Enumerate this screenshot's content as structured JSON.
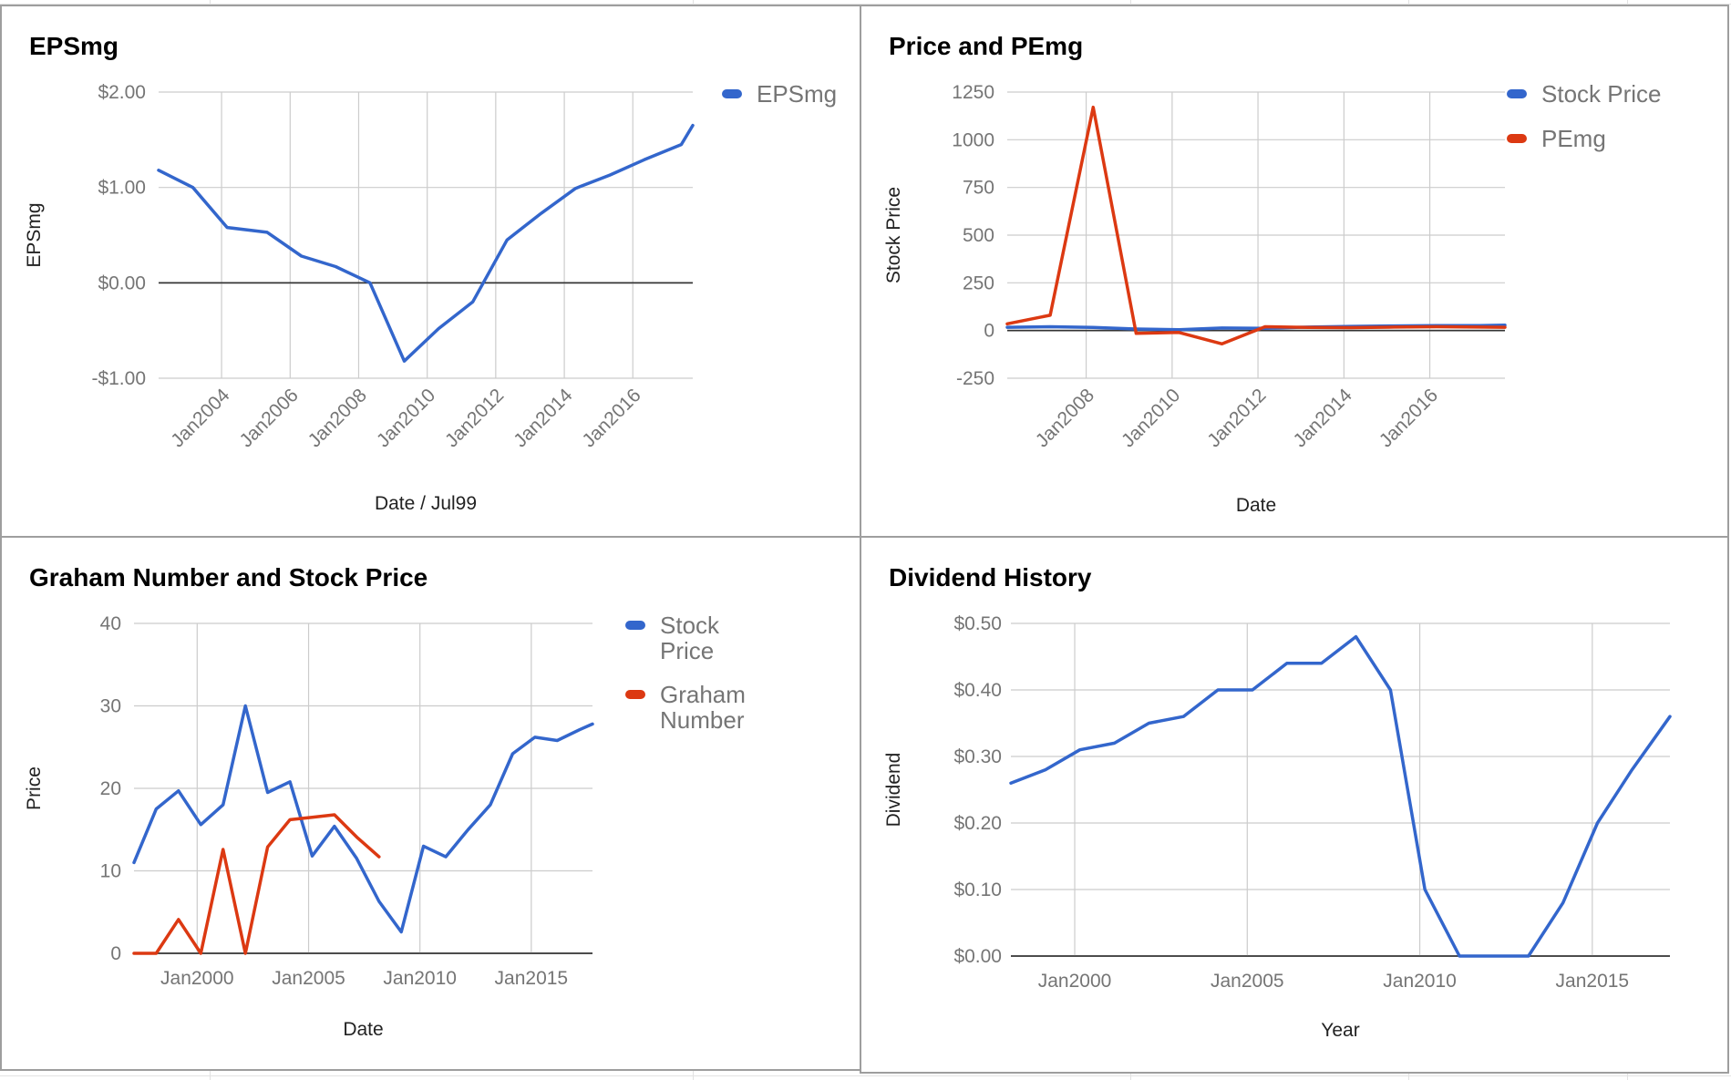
{
  "colors": {
    "blue": "#3366cc",
    "red": "#dc3912",
    "grid": "#cccccc",
    "zero_line": "#333333",
    "tick_text": "#757575",
    "title": "#000000"
  },
  "panels": {
    "epsmg": {
      "title": "EPSmg"
    },
    "price_pe": {
      "title": "Price and PEmg"
    },
    "graham": {
      "title": "Graham Number and Stock Price"
    },
    "dividend": {
      "title": "Dividend History"
    }
  },
  "chart_data": [
    {
      "id": "epsmg",
      "type": "line",
      "title": "EPSmg",
      "xlabel": "Date / Jul99",
      "ylabel": "EPSmg",
      "x_type": "date",
      "xlim": [
        "2002-03-01",
        "2017-10-01"
      ],
      "ylim": [
        -1,
        2
      ],
      "yticks": [
        2,
        1,
        0,
        -1
      ],
      "ytick_labels": [
        "$2.00",
        "$1.00",
        "$0.00",
        "-$1.00"
      ],
      "xticks": [
        "2004-01-01",
        "2006-01-01",
        "2008-01-01",
        "2010-01-01",
        "2012-01-01",
        "2014-01-01",
        "2016-01-01"
      ],
      "xtick_labels": [
        "Jan2004",
        "Jan2006",
        "Jan2008",
        "Jan2010",
        "Jan2012",
        "Jan2014",
        "Jan2016"
      ],
      "grid": true,
      "legend_position": "right",
      "series": [
        {
          "name": "EPSmg",
          "color": "#3366cc",
          "x": [
            "2002-03-01",
            "2003-03-01",
            "2004-03-01",
            "2005-05-01",
            "2006-05-01",
            "2007-05-01",
            "2008-05-01",
            "2009-05-01",
            "2010-05-01",
            "2011-05-01",
            "2012-05-01",
            "2013-05-01",
            "2014-05-01",
            "2015-05-01",
            "2016-05-01",
            "2017-06-01",
            "2017-10-01"
          ],
          "y": [
            1.18,
            1.0,
            0.58,
            0.53,
            0.28,
            0.17,
            0.0,
            -0.82,
            -0.48,
            -0.2,
            0.45,
            0.73,
            0.99,
            1.13,
            1.29,
            1.45,
            1.65
          ]
        }
      ]
    },
    {
      "id": "price_pe",
      "type": "line",
      "title": "Price and PEmg",
      "xlabel": "Date",
      "ylabel": "Stock Price",
      "x_type": "date",
      "xlim": [
        "2006-03-01",
        "2017-10-01"
      ],
      "ylim": [
        -250,
        1250
      ],
      "yticks": [
        1250,
        1000,
        750,
        500,
        250,
        0,
        -250
      ],
      "ytick_labels": [
        "1250",
        "1000",
        "750",
        "500",
        "250",
        "0",
        "-250"
      ],
      "xticks": [
        "2008-01-01",
        "2010-01-01",
        "2012-01-01",
        "2014-01-01",
        "2016-01-01"
      ],
      "xtick_labels": [
        "Jan2008",
        "Jan2010",
        "Jan2012",
        "Jan2014",
        "Jan2016"
      ],
      "grid": true,
      "legend_position": "right",
      "series": [
        {
          "name": "Stock Price",
          "color": "#3366cc",
          "x": [
            "2006-03-01",
            "2007-03-01",
            "2008-03-01",
            "2009-03-01",
            "2010-03-01",
            "2011-03-01",
            "2012-03-01",
            "2013-03-01",
            "2014-03-01",
            "2015-03-01",
            "2016-03-01",
            "2017-03-01",
            "2017-10-01"
          ],
          "y": [
            17,
            20,
            16,
            8,
            4,
            13,
            12,
            18,
            22,
            24,
            26,
            26,
            28
          ]
        },
        {
          "name": "PEmg",
          "color": "#dc3912",
          "x": [
            "2006-03-01",
            "2007-03-01",
            "2008-03-01",
            "2009-03-01",
            "2010-03-01",
            "2011-03-01",
            "2012-03-01",
            "2013-03-01",
            "2014-03-01",
            "2015-03-01",
            "2016-03-01",
            "2017-03-01",
            "2017-10-01"
          ],
          "y": [
            35,
            80,
            1170,
            -15,
            -10,
            -70,
            20,
            16,
            15,
            18,
            20,
            18,
            17
          ]
        }
      ]
    },
    {
      "id": "graham",
      "type": "line",
      "title": "Graham Number and Stock Price",
      "xlabel": "Date",
      "ylabel": "Price",
      "x_type": "date",
      "xlim": [
        "1997-03-01",
        "2017-10-01"
      ],
      "ylim": [
        0,
        40
      ],
      "yticks": [
        40,
        30,
        20,
        10,
        0
      ],
      "ytick_labels": [
        "40",
        "30",
        "20",
        "10",
        "0"
      ],
      "xticks": [
        "2000-01-01",
        "2005-01-01",
        "2010-01-01",
        "2015-01-01"
      ],
      "xtick_labels": [
        "Jan2000",
        "Jan2005",
        "Jan2010",
        "Jan2015"
      ],
      "grid": true,
      "legend_position": "right",
      "series": [
        {
          "name": "Stock Price",
          "color": "#3366cc",
          "x": [
            "1997-03-01",
            "1998-03-01",
            "1999-03-01",
            "2000-03-01",
            "2001-03-01",
            "2002-03-01",
            "2003-03-01",
            "2004-03-01",
            "2005-03-01",
            "2006-03-01",
            "2007-03-01",
            "2008-03-01",
            "2009-03-01",
            "2010-03-01",
            "2011-03-01",
            "2012-03-01",
            "2013-03-01",
            "2014-03-01",
            "2015-03-01",
            "2016-03-01",
            "2017-03-01",
            "2017-10-01"
          ],
          "y": [
            11,
            17.5,
            19.7,
            15.6,
            18,
            30,
            19.5,
            20.8,
            11.8,
            15.4,
            11.5,
            6.3,
            2.6,
            13,
            11.7,
            15,
            18,
            24.2,
            26.2,
            25.8,
            27.1,
            27.8
          ]
        },
        {
          "name": "Graham Number",
          "color": "#dc3912",
          "x": [
            "1997-03-01",
            "1998-03-01",
            "1999-03-01",
            "2000-03-01",
            "2001-03-01",
            "2002-03-01",
            "2003-03-01",
            "2004-03-01",
            "2005-03-01",
            "2006-03-01",
            "2007-03-01",
            "2008-03-01"
          ],
          "y": [
            0,
            0,
            4.1,
            0,
            12.6,
            0,
            12.9,
            16.2,
            16.5,
            16.8,
            14.1,
            11.7
          ]
        }
      ]
    },
    {
      "id": "dividend",
      "type": "line",
      "title": "Dividend History",
      "xlabel": "Year",
      "ylabel": "Dividend",
      "x_type": "year",
      "xlim": [
        1998.15,
        2017.25
      ],
      "ylim": [
        0,
        0.5
      ],
      "yticks": [
        0.5,
        0.4,
        0.3,
        0.2,
        0.1,
        0
      ],
      "ytick_labels": [
        "$0.50",
        "$0.40",
        "$0.30",
        "$0.20",
        "$0.10",
        "$0.00"
      ],
      "xticks": [
        2000,
        2005,
        2010,
        2015
      ],
      "xtick_labels": [
        "Jan2000",
        "Jan2005",
        "Jan2010",
        "Jan2015"
      ],
      "grid": true,
      "legend_position": "none",
      "series": [
        {
          "name": "",
          "color": "#3366cc",
          "x": [
            1998.15,
            1999.15,
            2000.15,
            2001.15,
            2002.15,
            2003.15,
            2004.15,
            2005.15,
            2006.15,
            2007.15,
            2008.15,
            2009.15,
            2010.15,
            2011.15,
            2012.15,
            2013.15,
            2014.15,
            2015.15,
            2016.15,
            2017.25
          ],
          "y": [
            0.26,
            0.28,
            0.31,
            0.32,
            0.35,
            0.36,
            0.4,
            0.4,
            0.44,
            0.44,
            0.48,
            0.4,
            0.1,
            0.0,
            0.0,
            0.0,
            0.08,
            0.2,
            0.28,
            0.36
          ]
        }
      ]
    }
  ]
}
